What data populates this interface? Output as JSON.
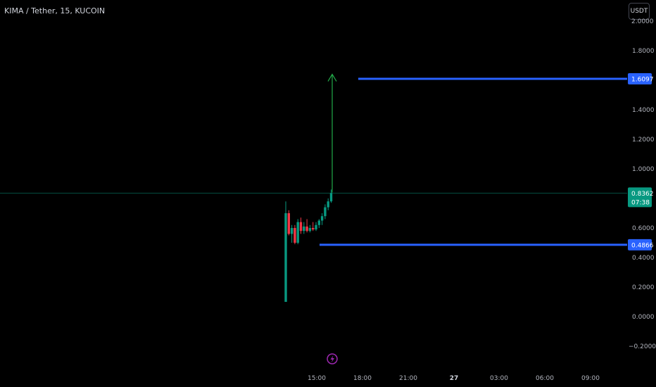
{
  "header": {
    "symbol": "KIMA / Tether, 15, KUCOIN"
  },
  "currency_button": {
    "label": "USDT"
  },
  "colors": {
    "background": "#000000",
    "up": "#089981",
    "down": "#f23645",
    "level_line": "#2962ff",
    "arrow": "#22ab4a",
    "current_price": "#089981",
    "event_icon": "#9c27b0"
  },
  "price_axis": {
    "top_partial": "2.0000",
    "ticks": [
      {
        "value": 1.8,
        "label": "1.8000"
      },
      {
        "value": 1.4,
        "label": "1.4000"
      },
      {
        "value": 1.2,
        "label": "1.2000"
      },
      {
        "value": 1.0,
        "label": "1.0000"
      },
      {
        "value": 0.6,
        "label": "0.6000"
      },
      {
        "value": 0.4,
        "label": "0.4000"
      },
      {
        "value": 0.2,
        "label": "0.2000"
      },
      {
        "value": 0.0,
        "label": "0.0000"
      },
      {
        "value": -0.2,
        "label": "−0.2000"
      }
    ]
  },
  "time_axis": {
    "ticks": [
      {
        "label": "15:00",
        "bold": false
      },
      {
        "label": "18:00",
        "bold": false
      },
      {
        "label": "21:00",
        "bold": false
      },
      {
        "label": "27",
        "bold": true
      },
      {
        "label": "03:00",
        "bold": false
      },
      {
        "label": "06:00",
        "bold": false
      },
      {
        "label": "09:00",
        "bold": false
      }
    ]
  },
  "current_price": {
    "value": 0.8362,
    "label": "0.8362",
    "countdown": "07:38"
  },
  "chart_data": {
    "type": "candlestick",
    "title": "KIMA / Tether, 15, KUCOIN",
    "ylim": [
      -0.25,
      2.0
    ],
    "candles": [
      {
        "o": 0.1,
        "h": 0.78,
        "l": 0.1,
        "c": 0.7
      },
      {
        "o": 0.7,
        "h": 0.72,
        "l": 0.55,
        "c": 0.56
      },
      {
        "o": 0.56,
        "h": 0.62,
        "l": 0.5,
        "c": 0.6
      },
      {
        "o": 0.6,
        "h": 0.62,
        "l": 0.49,
        "c": 0.5
      },
      {
        "o": 0.5,
        "h": 0.66,
        "l": 0.49,
        "c": 0.64
      },
      {
        "o": 0.64,
        "h": 0.67,
        "l": 0.56,
        "c": 0.58
      },
      {
        "o": 0.58,
        "h": 0.64,
        "l": 0.56,
        "c": 0.61
      },
      {
        "o": 0.61,
        "h": 0.66,
        "l": 0.57,
        "c": 0.58
      },
      {
        "o": 0.58,
        "h": 0.62,
        "l": 0.57,
        "c": 0.6
      },
      {
        "o": 0.6,
        "h": 0.64,
        "l": 0.58,
        "c": 0.59
      },
      {
        "o": 0.59,
        "h": 0.64,
        "l": 0.58,
        "c": 0.62
      },
      {
        "o": 0.62,
        "h": 0.66,
        "l": 0.6,
        "c": 0.65
      },
      {
        "o": 0.65,
        "h": 0.7,
        "l": 0.62,
        "c": 0.68
      },
      {
        "o": 0.68,
        "h": 0.76,
        "l": 0.66,
        "c": 0.74
      },
      {
        "o": 0.74,
        "h": 0.8,
        "l": 0.72,
        "c": 0.78
      },
      {
        "o": 0.78,
        "h": 0.86,
        "l": 0.77,
        "c": 0.8362
      }
    ],
    "levels": [
      {
        "name": "target",
        "value": 1.6097,
        "label": "1.6097"
      },
      {
        "name": "support",
        "value": 0.4866,
        "label": "0.4866"
      }
    ],
    "arrow": {
      "from": 0.84,
      "to": 1.64
    }
  }
}
